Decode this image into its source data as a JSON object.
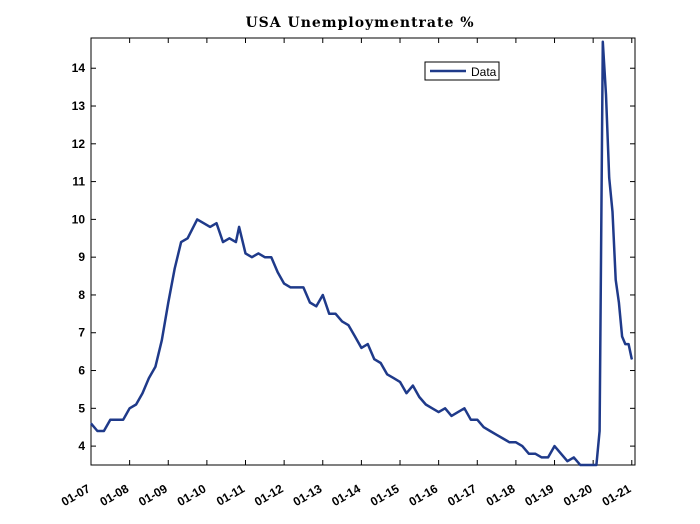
{
  "chart_data": {
    "type": "line",
    "title": "USA  Unemploymentrate  %",
    "xlabel": "",
    "ylabel": "",
    "x_tick_labels": [
      "01-07",
      "01-08",
      "01-09",
      "01-10",
      "01-11",
      "01-12",
      "01-13",
      "01-14",
      "01-15",
      "01-16",
      "01-17",
      "01-18",
      "01-19",
      "01-20",
      "01-21"
    ],
    "x_range": [
      "2007-01",
      "2021-02"
    ],
    "y_ticks": [
      4,
      5,
      6,
      7,
      8,
      9,
      10,
      11,
      12,
      13,
      14
    ],
    "ylim": [
      3.5,
      14.8
    ],
    "grid": false,
    "legend_position": "top-right",
    "series": [
      {
        "name": "Data",
        "color": "#1f3a8a",
        "points": [
          [
            "2007-01",
            4.6
          ],
          [
            "2007-03",
            4.4
          ],
          [
            "2007-05",
            4.4
          ],
          [
            "2007-07",
            4.7
          ],
          [
            "2007-09",
            4.7
          ],
          [
            "2007-11",
            4.7
          ],
          [
            "2008-01",
            5.0
          ],
          [
            "2008-03",
            5.1
          ],
          [
            "2008-05",
            5.4
          ],
          [
            "2008-07",
            5.8
          ],
          [
            "2008-09",
            6.1
          ],
          [
            "2008-11",
            6.8
          ],
          [
            "2009-01",
            7.8
          ],
          [
            "2009-03",
            8.7
          ],
          [
            "2009-05",
            9.4
          ],
          [
            "2009-07",
            9.5
          ],
          [
            "2009-10",
            10.0
          ],
          [
            "2009-12",
            9.9
          ],
          [
            "2010-02",
            9.8
          ],
          [
            "2010-04",
            9.9
          ],
          [
            "2010-06",
            9.4
          ],
          [
            "2010-08",
            9.5
          ],
          [
            "2010-10",
            9.4
          ],
          [
            "2010-11",
            9.8
          ],
          [
            "2011-01",
            9.1
          ],
          [
            "2011-03",
            9.0
          ],
          [
            "2011-05",
            9.1
          ],
          [
            "2011-07",
            9.0
          ],
          [
            "2011-09",
            9.0
          ],
          [
            "2011-11",
            8.6
          ],
          [
            "2012-01",
            8.3
          ],
          [
            "2012-03",
            8.2
          ],
          [
            "2012-05",
            8.2
          ],
          [
            "2012-07",
            8.2
          ],
          [
            "2012-09",
            7.8
          ],
          [
            "2012-11",
            7.7
          ],
          [
            "2013-01",
            8.0
          ],
          [
            "2013-03",
            7.5
          ],
          [
            "2013-05",
            7.5
          ],
          [
            "2013-07",
            7.3
          ],
          [
            "2013-09",
            7.2
          ],
          [
            "2013-11",
            6.9
          ],
          [
            "2014-01",
            6.6
          ],
          [
            "2014-03",
            6.7
          ],
          [
            "2014-05",
            6.3
          ],
          [
            "2014-07",
            6.2
          ],
          [
            "2014-09",
            5.9
          ],
          [
            "2014-11",
            5.8
          ],
          [
            "2015-01",
            5.7
          ],
          [
            "2015-03",
            5.4
          ],
          [
            "2015-05",
            5.6
          ],
          [
            "2015-07",
            5.3
          ],
          [
            "2015-09",
            5.1
          ],
          [
            "2015-11",
            5.0
          ],
          [
            "2016-01",
            4.9
          ],
          [
            "2016-03",
            5.0
          ],
          [
            "2016-05",
            4.8
          ],
          [
            "2016-07",
            4.9
          ],
          [
            "2016-09",
            5.0
          ],
          [
            "2016-11",
            4.7
          ],
          [
            "2017-01",
            4.7
          ],
          [
            "2017-03",
            4.5
          ],
          [
            "2017-05",
            4.4
          ],
          [
            "2017-07",
            4.3
          ],
          [
            "2017-09",
            4.2
          ],
          [
            "2017-11",
            4.1
          ],
          [
            "2018-01",
            4.1
          ],
          [
            "2018-03",
            4.0
          ],
          [
            "2018-05",
            3.8
          ],
          [
            "2018-07",
            3.8
          ],
          [
            "2018-09",
            3.7
          ],
          [
            "2018-11",
            3.7
          ],
          [
            "2019-01",
            4.0
          ],
          [
            "2019-03",
            3.8
          ],
          [
            "2019-05",
            3.6
          ],
          [
            "2019-07",
            3.7
          ],
          [
            "2019-09",
            3.5
          ],
          [
            "2019-11",
            3.5
          ],
          [
            "2020-01",
            3.5
          ],
          [
            "2020-02",
            3.5
          ],
          [
            "2020-03",
            4.4
          ],
          [
            "2020-04",
            14.7
          ],
          [
            "2020-05",
            13.3
          ],
          [
            "2020-06",
            11.1
          ],
          [
            "2020-07",
            10.2
          ],
          [
            "2020-08",
            8.4
          ],
          [
            "2020-09",
            7.8
          ],
          [
            "2020-10",
            6.9
          ],
          [
            "2020-11",
            6.7
          ],
          [
            "2020-12",
            6.7
          ],
          [
            "2021-01",
            6.3
          ]
        ]
      }
    ]
  }
}
